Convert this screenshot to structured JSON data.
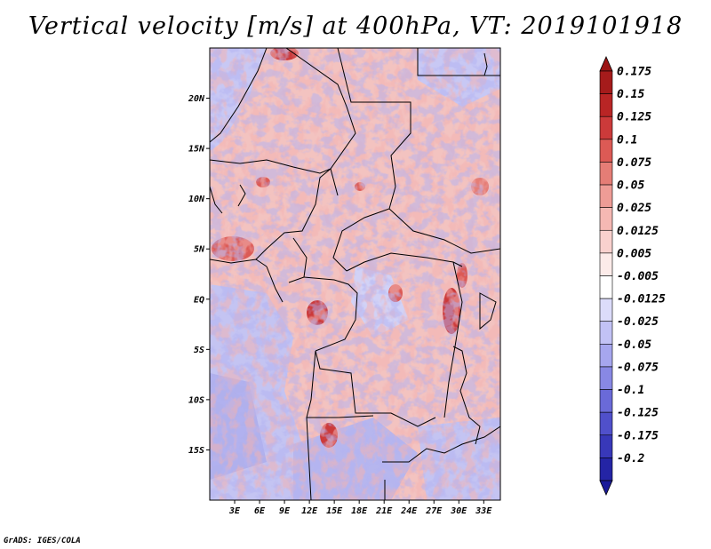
{
  "title": "Vertical velocity [m/s] at 400hPa, VT: 2019101918",
  "credit": "GrADS: IGES/COLA",
  "map": {
    "lon_range": [
      0,
      35
    ],
    "lat_range": [
      -20,
      25
    ],
    "lat_ticks": [
      {
        "value": 20,
        "label": "20N"
      },
      {
        "value": 15,
        "label": "15N"
      },
      {
        "value": 10,
        "label": "10N"
      },
      {
        "value": 5,
        "label": "5N"
      },
      {
        "value": 0,
        "label": "EQ"
      },
      {
        "value": -5,
        "label": "5S"
      },
      {
        "value": -10,
        "label": "10S"
      },
      {
        "value": -15,
        "label": "15S"
      }
    ],
    "lon_ticks": [
      {
        "value": 3,
        "label": "3E"
      },
      {
        "value": 6,
        "label": "6E"
      },
      {
        "value": 9,
        "label": "9E"
      },
      {
        "value": 12,
        "label": "12E"
      },
      {
        "value": 15,
        "label": "15E"
      },
      {
        "value": 18,
        "label": "18E"
      },
      {
        "value": 21,
        "label": "21E"
      },
      {
        "value": 24,
        "label": "24E"
      },
      {
        "value": 27,
        "label": "27E"
      },
      {
        "value": 30,
        "label": "30E"
      },
      {
        "value": 33,
        "label": "33E"
      }
    ]
  },
  "colorbar": {
    "levels": [
      {
        "label": "0.175",
        "color": "#a51b1b"
      },
      {
        "label": "0.15",
        "color": "#b92525"
      },
      {
        "label": "0.125",
        "color": "#cc3a3a"
      },
      {
        "label": "0.1",
        "color": "#dc5a55"
      },
      {
        "label": "0.075",
        "color": "#e57d76"
      },
      {
        "label": "0.05",
        "color": "#ee9c96"
      },
      {
        "label": "0.025",
        "color": "#f5b8b3"
      },
      {
        "label": "0.0125",
        "color": "#f9d1ce"
      },
      {
        "label": "0.005",
        "color": "#fcebe9"
      },
      {
        "label": "-0.005",
        "color": "#ffffff"
      },
      {
        "label": "-0.0125",
        "color": "#dcdcfa"
      },
      {
        "label": "-0.025",
        "color": "#c2c2f5"
      },
      {
        "label": "-0.05",
        "color": "#a6a6ee"
      },
      {
        "label": "-0.075",
        "color": "#8888e4"
      },
      {
        "label": "-0.1",
        "color": "#6a6ad8"
      },
      {
        "label": "-0.125",
        "color": "#5050cb"
      },
      {
        "label": "-0.175",
        "color": "#3838b9"
      },
      {
        "label": "-0.2",
        "color": "#2424a5"
      }
    ],
    "top_color": "#9c1414",
    "bottom_color": "#1a1a99"
  }
}
